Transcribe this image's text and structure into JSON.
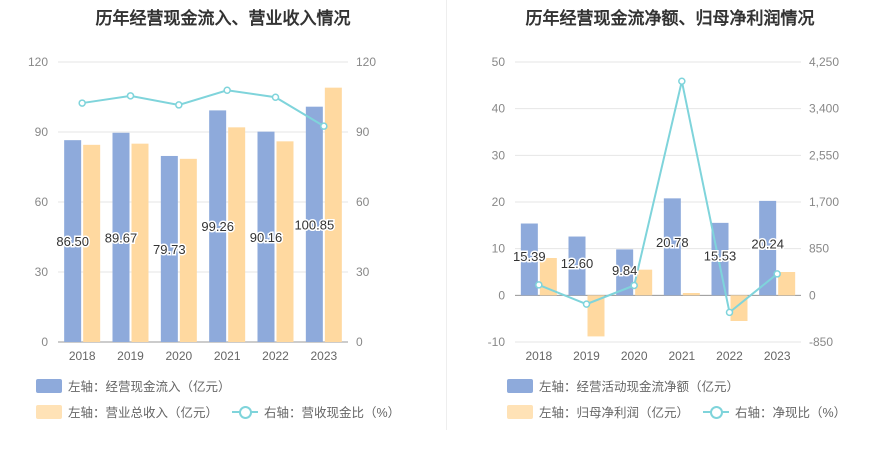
{
  "chart_data": [
    {
      "type": "bar",
      "title": "历年经营现金流入、营业收入情况",
      "categories": [
        "2018",
        "2019",
        "2020",
        "2021",
        "2022",
        "2023"
      ],
      "left_axis": {
        "min": 0,
        "max": 120,
        "ticks": [
          "0",
          "30",
          "60",
          "90",
          "120"
        ]
      },
      "right_axis": {
        "min": 0,
        "max": 120,
        "ticks": [
          "0",
          "30",
          "60",
          "90",
          "120"
        ]
      },
      "series": [
        {
          "name": "左轴：经营现金流入（亿元）",
          "type": "bar",
          "axis": "left",
          "color": "#8eaadb",
          "values": [
            86.5,
            89.67,
            79.73,
            99.26,
            90.16,
            100.85
          ],
          "labels": [
            "86.50",
            "89.67",
            "79.73",
            "99.26",
            "90.16",
            "100.85"
          ]
        },
        {
          "name": "左轴：营业总收入（亿元）",
          "type": "bar",
          "axis": "left",
          "color": "#ffd9a0",
          "values": [
            84.5,
            85.0,
            78.5,
            92.0,
            86.0,
            109.0
          ]
        },
        {
          "name": "右轴：营收现金比（%）",
          "type": "line",
          "axis": "right",
          "color": "#7fd4db",
          "values": [
            102.4,
            105.5,
            101.6,
            107.9,
            104.9,
            92.5
          ]
        }
      ]
    },
    {
      "type": "bar",
      "title": "历年经营现金流净额、归母净利润情况",
      "categories": [
        "2018",
        "2019",
        "2020",
        "2021",
        "2022",
        "2023"
      ],
      "left_axis": {
        "min": -10,
        "max": 50,
        "ticks": [
          "-10",
          "0",
          "10",
          "20",
          "30",
          "40",
          "50"
        ]
      },
      "right_axis": {
        "min": -850,
        "max": 4250,
        "ticks": [
          "-850",
          "0",
          "850",
          "1,700",
          "2,550",
          "3,400",
          "4,250"
        ]
      },
      "series": [
        {
          "name": "左轴：经营活动现金流净额（亿元）",
          "type": "bar",
          "axis": "left",
          "color": "#8eaadb",
          "values": [
            15.39,
            12.6,
            9.84,
            20.78,
            15.53,
            20.24
          ],
          "labels": [
            "15.39",
            "12.60",
            "9.84",
            "20.78",
            "15.53",
            "20.24"
          ]
        },
        {
          "name": "左轴：归母净利润（亿元）",
          "type": "bar",
          "axis": "left",
          "color": "#ffd9a0",
          "values": [
            8.0,
            -8.8,
            5.5,
            0.5,
            -5.5,
            5.0
          ]
        },
        {
          "name": "右轴：净现比（%）",
          "type": "line",
          "axis": "right",
          "color": "#7fd4db",
          "values": [
            190,
            -160,
            180,
            3900,
            -310,
            390
          ]
        }
      ]
    }
  ]
}
